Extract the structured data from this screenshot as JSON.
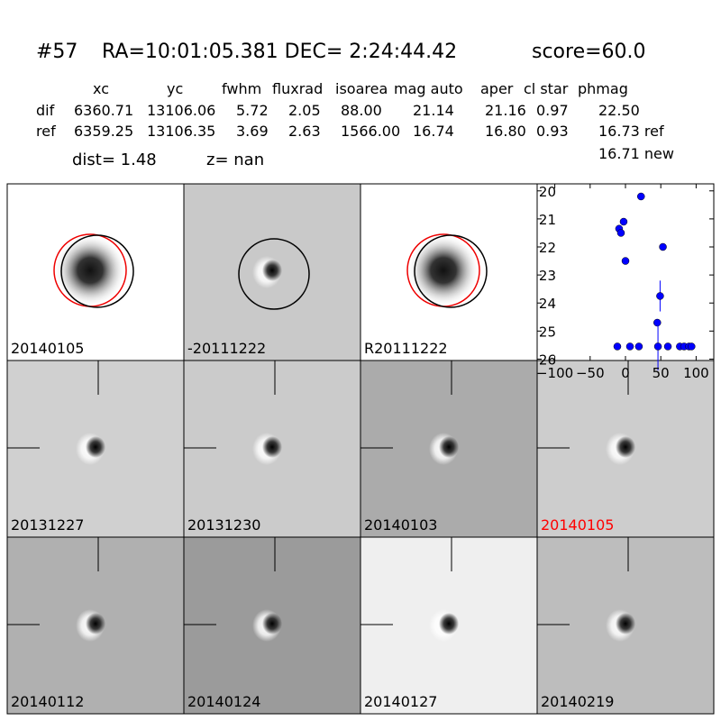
{
  "header": {
    "id": "#57",
    "coords": "RA=10:01:05.381 DEC= 2:24:44.42",
    "score": "score=60.0"
  },
  "table": {
    "columns": [
      "xc",
      "yc",
      "fwhm",
      "fluxrad",
      "isoarea",
      "mag auto",
      "aper",
      "cl star",
      "phmag"
    ],
    "rows": [
      [
        "dif",
        "6360.71",
        "13106.06",
        "5.72",
        "2.05",
        "88.00",
        "21.14",
        "21.16",
        "0.97",
        "22.50"
      ],
      [
        "ref",
        "6359.25",
        "13106.35",
        "3.69",
        "2.63",
        "1566.00",
        "16.74",
        "16.80",
        "0.93",
        "16.73 ref"
      ]
    ],
    "dist": "dist=  1.48",
    "z": "z=   nan",
    "new_mag": "16.71 new"
  },
  "stamps": [
    "20140105",
    "-20111222",
    "R20111222",
    "20131227",
    "20131230",
    "20140103",
    "20140105",
    "20140112",
    "20140124",
    "20140127",
    "20140219"
  ],
  "plot": {
    "type": "scatter",
    "x": [
      -11.5,
      -9,
      -6.4,
      -2.6,
      0,
      6.4,
      19,
      22,
      45,
      46,
      49,
      53,
      60,
      77,
      83,
      90,
      93.5
    ],
    "values": [
      25.55,
      21.35,
      21.5,
      21.1,
      22.5,
      25.55,
      25.55,
      20.2,
      24.7,
      25.55,
      23.75,
      22.0,
      25.55,
      25.55,
      25.55,
      25.55,
      25.55
    ],
    "errors": [
      null,
      null,
      null,
      null,
      0.1,
      null,
      null,
      null,
      null,
      0.85,
      0.55,
      null,
      null,
      null,
      null,
      null,
      null
    ],
    "color": "#0000ff",
    "xlim": [
      -125,
      125
    ],
    "ylim": [
      19.75,
      26.05
    ],
    "xticks": [
      {
        "value": -100,
        "label": "−100"
      },
      {
        "value": -50,
        "label": "−50"
      },
      0,
      50,
      100
    ],
    "yticks": [
      20,
      21,
      22,
      23,
      24,
      25,
      26
    ]
  }
}
